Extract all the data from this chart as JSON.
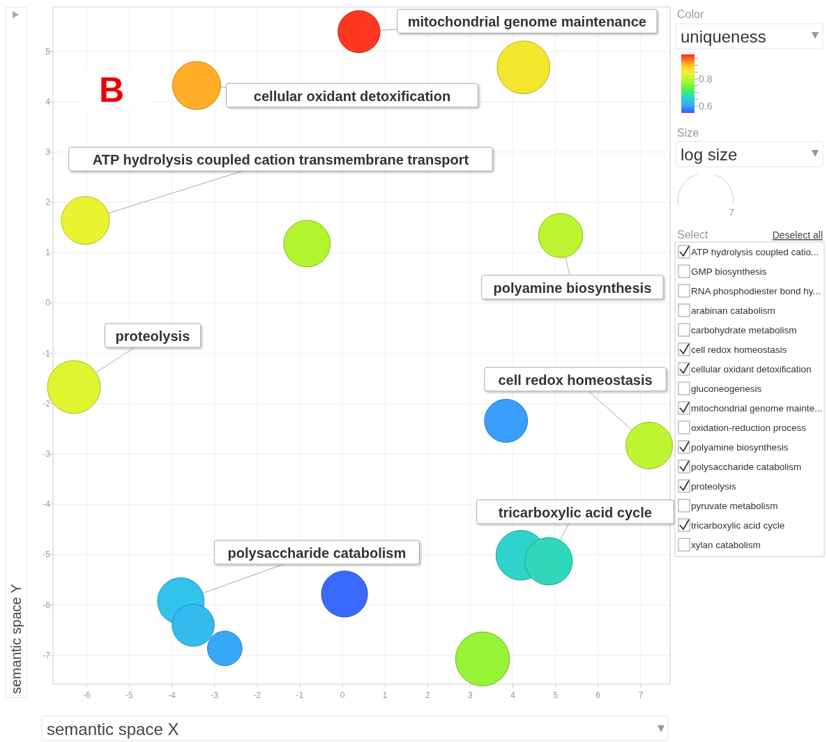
{
  "chart_data": {
    "type": "bubble",
    "xlabel": "semantic space X",
    "ylabel": "semantic space Y",
    "clabel": "uniqueness",
    "x": [
      0.39,
      4.25,
      -3.42,
      -6.03,
      -0.83,
      5.12,
      -6.3,
      3.84,
      7.2,
      4.19,
      4.84,
      0.05,
      -3.79,
      -3.5,
      -2.76,
      3.29
    ],
    "values": [
      5.39,
      4.68,
      4.32,
      1.64,
      1.18,
      1.34,
      -1.67,
      -2.34,
      -2.83,
      -5.01,
      -5.13,
      -5.78,
      -5.92,
      -6.4,
      -6.86,
      -7.07
    ],
    "sizes": [
      4.0,
      6.3,
      5.2,
      5.2,
      4.9,
      4.4,
      6.3,
      4.2,
      4.9,
      5.6,
      5.1,
      4.8,
      4.9,
      4.0,
      2.7,
      6.6
    ],
    "cvalues": [
      0.97,
      0.86,
      0.91,
      0.84,
      0.79,
      0.8,
      0.83,
      0.6,
      0.8,
      0.66,
      0.67,
      0.56,
      0.64,
      0.63,
      0.61,
      0.77
    ],
    "size_legend": [
      7
    ],
    "clim": [
      0.55,
      0.98
    ],
    "cticks": [
      {
        "value": 0.6,
        "label": "0.6"
      },
      {
        "value": 0.65,
        "label": null
      },
      {
        "value": 0.7,
        "label": null
      },
      {
        "value": 0.75,
        "label": null
      },
      {
        "value": 0.8,
        "label": "0.8"
      },
      {
        "value": 0.85,
        "label": null
      },
      {
        "value": 0.9,
        "label": null
      },
      {
        "value": 0.95,
        "label": null
      }
    ],
    "xlim": [
      -6.79,
      7.69
    ],
    "ylim": [
      -7.57,
      5.88
    ],
    "xticks": [
      -6,
      -5,
      -4,
      -3,
      -2,
      -1,
      0,
      1,
      2,
      3,
      4,
      5,
      6,
      7
    ],
    "yticks": [
      -7,
      -6,
      -5,
      -4,
      -3,
      -2,
      -1,
      0,
      1,
      2,
      3,
      4,
      5
    ],
    "grid": true,
    "annotations": [
      {
        "text": "mitochondrial genome maintenance",
        "x": 0.39,
        "y": 5.39
      },
      {
        "text": "cellular oxidant detoxification",
        "x": -3.42,
        "y": 4.32
      },
      {
        "text": "ATP hydrolysis coupled cation transmembrane transport",
        "x": -6.03,
        "y": 1.64
      },
      {
        "text": "polyamine biosynthesis",
        "x": 5.12,
        "y": 1.34
      },
      {
        "text": "proteolysis",
        "x": -6.3,
        "y": -1.67
      },
      {
        "text": "cell redox homeostasis",
        "x": 7.2,
        "y": -2.83
      },
      {
        "text": "tricarboxylic acid cycle",
        "x": 4.84,
        "y": -5.13
      },
      {
        "text": "polysaccharide catabolism",
        "x": -3.79,
        "y": -5.92
      },
      "B",
      "Color",
      "Size",
      "log size",
      "Select",
      "Deselect all",
      "ATP hydrolysis coupled catio...",
      "GMP biosynthesis",
      "RNA phosphodiester bond hy...",
      "arabinan catabolism",
      "carbohydrate metabolism",
      "cell redox homeostasis",
      "cellular oxidant detoxification",
      "gluconeogenesis",
      "mitochondrial genome mainte...",
      "oxidation-reduction process",
      "polyamine biosynthesis",
      "polysaccharide catabolism",
      "proteolysis",
      "pyruvate metabolism",
      "tricarboxylic acid cycle",
      "xylan catabolism"
    ]
  }
}
